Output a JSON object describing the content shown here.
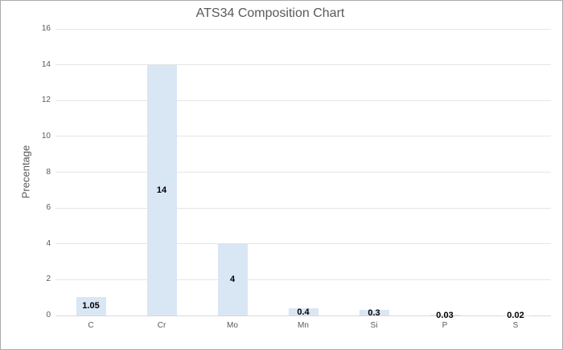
{
  "title": "ATS34 Composition Chart",
  "y_axis_title": "Precentage",
  "chart_data": {
    "type": "bar",
    "title": "ATS34 Composition Chart",
    "xlabel": "",
    "ylabel": "Precentage",
    "categories": [
      "C",
      "Cr",
      "Mo",
      "Mn",
      "Si",
      "P",
      "S"
    ],
    "values": [
      1.05,
      14,
      4,
      0.4,
      0.3,
      0.03,
      0.02
    ],
    "data_labels": [
      "1.05",
      "14",
      "4",
      "0.4",
      "0.3",
      "0.03",
      "0.02"
    ],
    "ylim": [
      0,
      16
    ],
    "ytick_labels": [
      "0",
      "2",
      "4",
      "6",
      "8",
      "10",
      "12",
      "14",
      "16"
    ],
    "grid": true,
    "legend": false,
    "data_label_position": "inside-center",
    "colors": {
      "bar_fill": "#d9e6f4",
      "gridline": "#e6e6e6",
      "axis_line": "#d9d9d9",
      "axis_text": "#595959",
      "title_text": "#595959",
      "data_label_text": "#000000",
      "chart_border": "#ababab",
      "background": "#ffffff"
    }
  }
}
